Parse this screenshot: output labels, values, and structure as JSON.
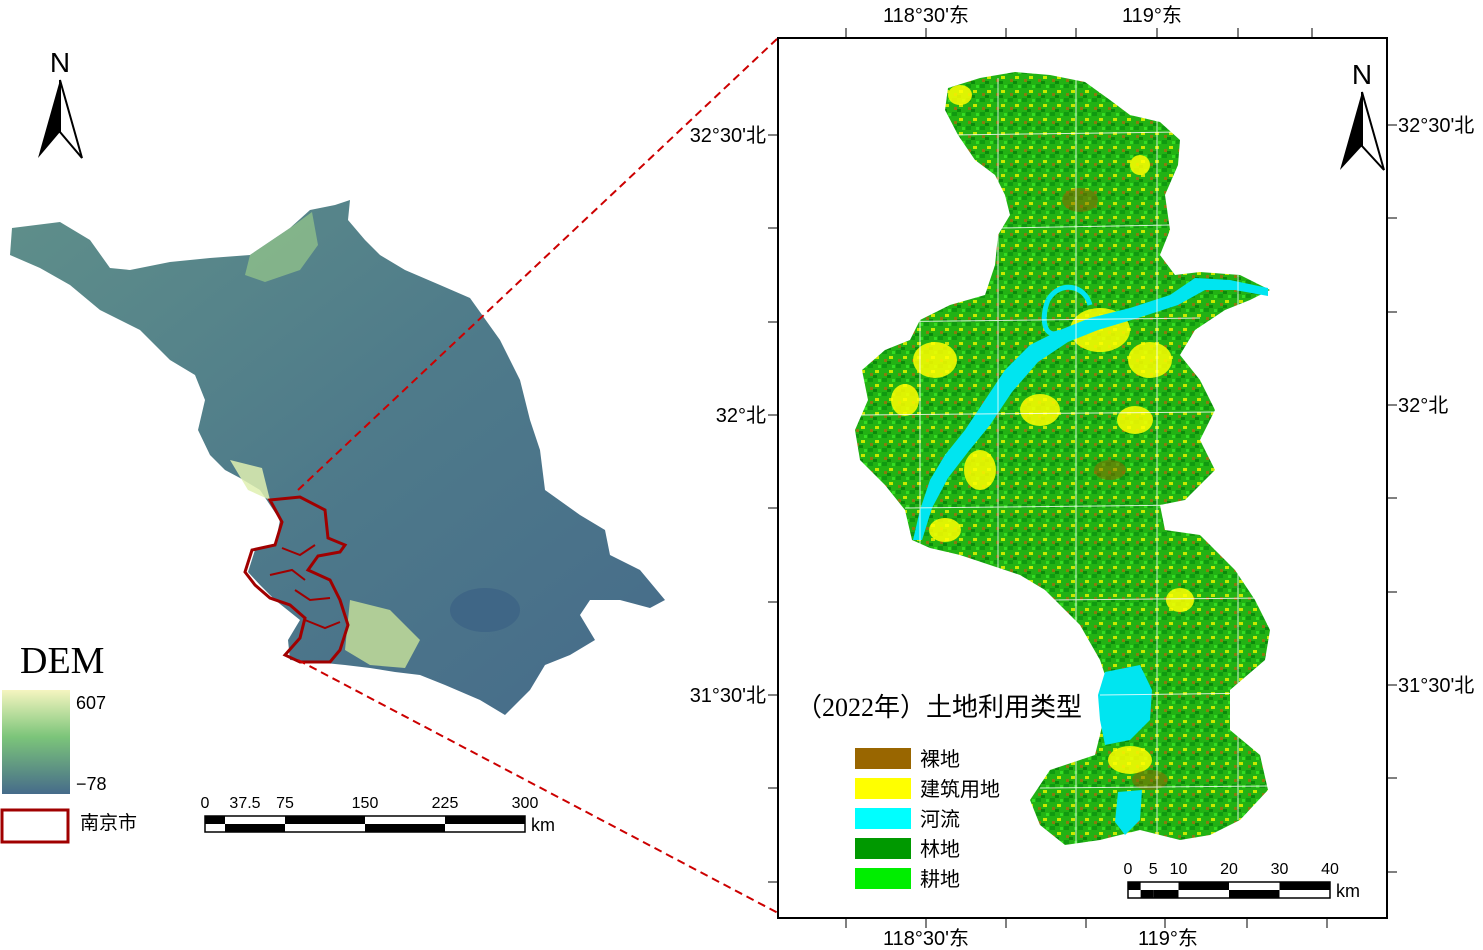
{
  "overview_map": {
    "north_label": "N",
    "legend": {
      "title": "DEM",
      "max_label": "607",
      "min_label": "−78",
      "ramp_colors": [
        "#f5f5c0",
        "#7cc57a",
        "#466b8a"
      ],
      "boundary_label": "南京市",
      "boundary_color": "#a00000"
    },
    "scalebar": {
      "ticks": [
        "0",
        "37.5",
        "75",
        "150",
        "225",
        "300"
      ],
      "unit": "km"
    }
  },
  "detail_map": {
    "north_label": "N",
    "top_lon_labels": [
      "118°30'东",
      "119°东"
    ],
    "bottom_lon_labels": [
      "118°30'东",
      "119°东"
    ],
    "left_lat_labels": [
      "32°30'北",
      "32°北",
      "31°30'北"
    ],
    "right_lat_labels": [
      "32°30'北",
      "32°北",
      "31°30'北"
    ],
    "legend": {
      "title": "（2022年）土地利用类型",
      "items": [
        {
          "label": "裸地",
          "color": "#996600"
        },
        {
          "label": "建筑用地",
          "color": "#ffff00"
        },
        {
          "label": "河流",
          "color": "#00ffff"
        },
        {
          "label": "林地",
          "color": "#009900"
        },
        {
          "label": "耕地",
          "color": "#00ee00"
        }
      ]
    },
    "scalebar": {
      "ticks": [
        "0",
        "5",
        "10",
        "20",
        "30",
        "40"
      ],
      "unit": "km"
    }
  },
  "connector_color": "#cc0000"
}
